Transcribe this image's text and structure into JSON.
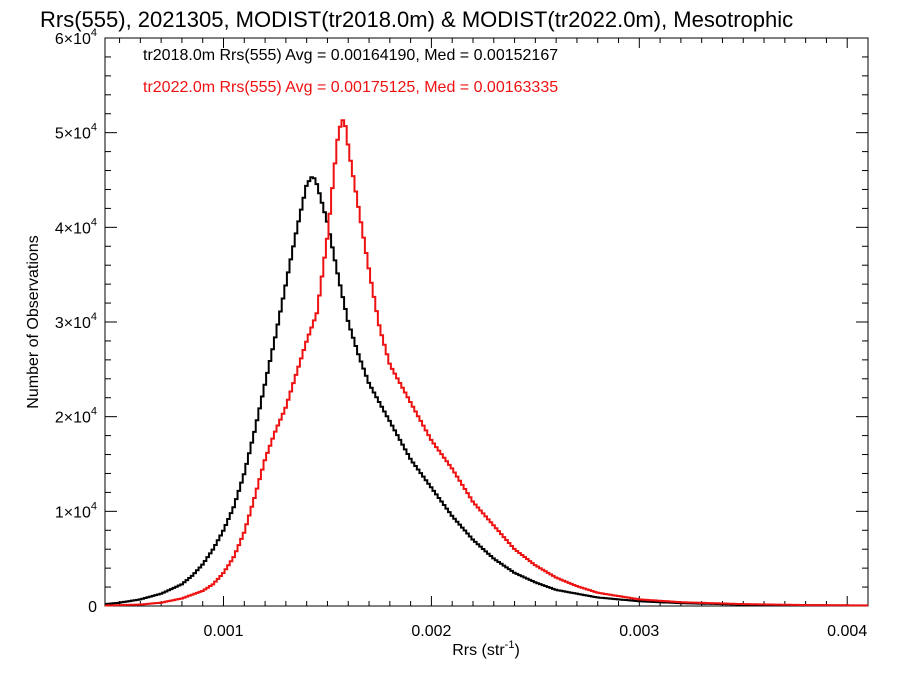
{
  "chart_data": {
    "type": "line",
    "title": "Rrs(555), 2021305, MODIST(tr2018.0m) & MODIST(tr2022.0m), Mesotrophic",
    "xlabel": "Rrs (str",
    "xlabel_sup": "-1",
    "xlabel_close": ")",
    "ylabel": "Number of Observations",
    "xlim": [
      0.00043,
      0.0041
    ],
    "ylim": [
      0,
      60000
    ],
    "x_ticks": [
      {
        "value": 0.001,
        "label": "0.001"
      },
      {
        "value": 0.002,
        "label": "0.002"
      },
      {
        "value": 0.003,
        "label": "0.003"
      },
      {
        "value": 0.004,
        "label": "0.004"
      }
    ],
    "y_ticks": [
      {
        "value": 0,
        "mant": "0",
        "exp": ""
      },
      {
        "value": 10000,
        "mant": "1×10",
        "exp": "4"
      },
      {
        "value": 20000,
        "mant": "2×10",
        "exp": "4"
      },
      {
        "value": 30000,
        "mant": "3×10",
        "exp": "4"
      },
      {
        "value": 40000,
        "mant": "4×10",
        "exp": "4"
      },
      {
        "value": 50000,
        "mant": "5×10",
        "exp": "4"
      },
      {
        "value": 60000,
        "mant": "6×10",
        "exp": "4"
      }
    ],
    "legend_placement": "top-left",
    "grid": false,
    "series": [
      {
        "name": "tr2018.0m",
        "legend": "tr2018.0m Rrs(555) Avg = 0.00164190, Med = 0.00152167",
        "color": "#000000",
        "points": [
          [
            0.00043,
            200
          ],
          [
            0.0005,
            350
          ],
          [
            0.0006,
            700
          ],
          [
            0.0007,
            1300
          ],
          [
            0.0008,
            2300
          ],
          [
            0.00085,
            3200
          ],
          [
            0.0009,
            4400
          ],
          [
            0.00095,
            6000
          ],
          [
            0.001,
            8000
          ],
          [
            0.00105,
            10500
          ],
          [
            0.0011,
            14000
          ],
          [
            0.00115,
            18500
          ],
          [
            0.0012,
            23500
          ],
          [
            0.00125,
            28500
          ],
          [
            0.0013,
            34000
          ],
          [
            0.00135,
            39500
          ],
          [
            0.0014,
            44500
          ],
          [
            0.00143,
            45500
          ],
          [
            0.00145,
            44500
          ],
          [
            0.0015,
            40500
          ],
          [
            0.00155,
            35000
          ],
          [
            0.0016,
            30000
          ],
          [
            0.00165,
            26500
          ],
          [
            0.0017,
            23500
          ],
          [
            0.0018,
            19500
          ],
          [
            0.0019,
            15500
          ],
          [
            0.002,
            12500
          ],
          [
            0.0021,
            9500
          ],
          [
            0.0022,
            7000
          ],
          [
            0.0023,
            5000
          ],
          [
            0.0024,
            3500
          ],
          [
            0.0025,
            2500
          ],
          [
            0.0026,
            1700
          ],
          [
            0.0028,
            900
          ],
          [
            0.003,
            500
          ],
          [
            0.0032,
            300
          ],
          [
            0.0035,
            150
          ],
          [
            0.0038,
            80
          ],
          [
            0.0041,
            50
          ]
        ]
      },
      {
        "name": "tr2022.0m",
        "legend": "tr2022.0m Rrs(555) Avg = 0.00175125, Med = 0.00163335",
        "color": "#ee1111",
        "points": [
          [
            0.00043,
            50
          ],
          [
            0.0006,
            150
          ],
          [
            0.0007,
            350
          ],
          [
            0.0008,
            800
          ],
          [
            0.0009,
            1600
          ],
          [
            0.00095,
            2300
          ],
          [
            0.001,
            3500
          ],
          [
            0.00105,
            5200
          ],
          [
            0.0011,
            7800
          ],
          [
            0.00115,
            11500
          ],
          [
            0.0012,
            15500
          ],
          [
            0.00125,
            18500
          ],
          [
            0.0013,
            21000
          ],
          [
            0.00135,
            24500
          ],
          [
            0.0014,
            28000
          ],
          [
            0.00145,
            31000
          ],
          [
            0.0015,
            39000
          ],
          [
            0.00153,
            45500
          ],
          [
            0.00155,
            49500
          ],
          [
            0.00157,
            51500
          ],
          [
            0.00159,
            50500
          ],
          [
            0.0016,
            48500
          ],
          [
            0.00165,
            42000
          ],
          [
            0.0017,
            35500
          ],
          [
            0.00175,
            29500
          ],
          [
            0.0018,
            25500
          ],
          [
            0.0019,
            21500
          ],
          [
            0.002,
            17500
          ],
          [
            0.0021,
            14500
          ],
          [
            0.0022,
            11000
          ],
          [
            0.0023,
            8500
          ],
          [
            0.0024,
            6000
          ],
          [
            0.0025,
            4300
          ],
          [
            0.0026,
            3000
          ],
          [
            0.0027,
            2100
          ],
          [
            0.0028,
            1400
          ],
          [
            0.003,
            700
          ],
          [
            0.0032,
            400
          ],
          [
            0.0035,
            200
          ],
          [
            0.0038,
            100
          ],
          [
            0.0041,
            60
          ]
        ]
      }
    ]
  }
}
